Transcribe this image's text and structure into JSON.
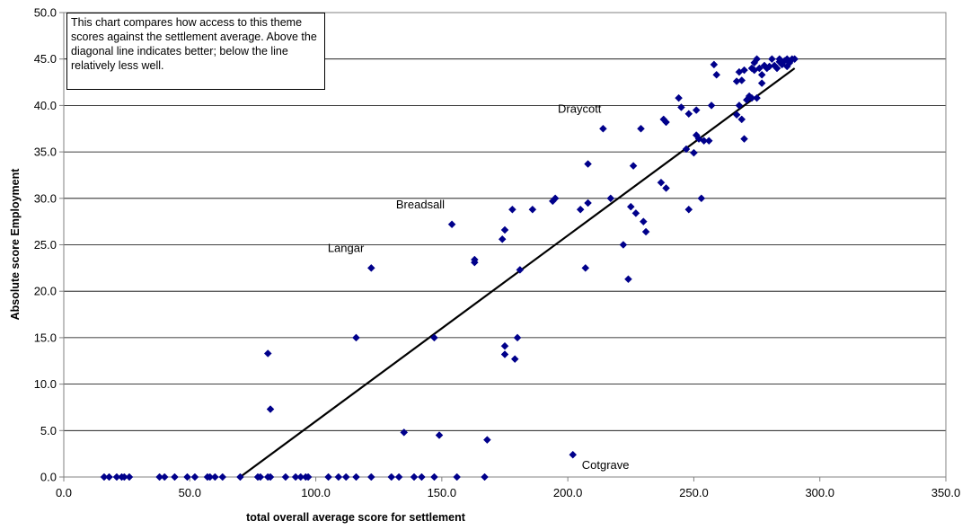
{
  "chart_data": {
    "type": "scatter",
    "xlabel": "total overall average score for settlement",
    "ylabel": "Absolute score Employment",
    "xlim": [
      0,
      350
    ],
    "ylim": [
      0,
      50
    ],
    "x_ticks": [
      "0.0",
      "50.0",
      "100.0",
      "150.0",
      "200.0",
      "250.0",
      "300.0",
      "350.0"
    ],
    "y_ticks": [
      "0.0",
      "5.0",
      "10.0",
      "15.0",
      "20.0",
      "25.0",
      "30.0",
      "35.0",
      "40.0",
      "45.0",
      "50.0"
    ],
    "grid": "horizontal",
    "legend": "none",
    "marker_color": "#00008B",
    "note": "This chart compares how access to this theme scores against the settlement average. Above the diagonal line indicates better; below the line relatively less well.",
    "trend_line": {
      "x": [
        70,
        290
      ],
      "y": [
        0,
        44
      ]
    },
    "annotations": [
      {
        "text": "Draycott",
        "x": 214,
        "y": 37.5
      },
      {
        "text": "Breadsall",
        "x": 154,
        "y": 27.2
      },
      {
        "text": "Langar",
        "x": 122,
        "y": 22.5
      },
      {
        "text": "Cotgrave",
        "x": 202,
        "y": 2.4
      }
    ],
    "points": [
      [
        16,
        0
      ],
      [
        18,
        0
      ],
      [
        21,
        0
      ],
      [
        23,
        0
      ],
      [
        24,
        0
      ],
      [
        26,
        0
      ],
      [
        38,
        0
      ],
      [
        40,
        0
      ],
      [
        44,
        0
      ],
      [
        49,
        0
      ],
      [
        52,
        0
      ],
      [
        57,
        0
      ],
      [
        58,
        0
      ],
      [
        60,
        0
      ],
      [
        63,
        0
      ],
      [
        70,
        0
      ],
      [
        77,
        0
      ],
      [
        78,
        0
      ],
      [
        81,
        0
      ],
      [
        82,
        0
      ],
      [
        88,
        0
      ],
      [
        92,
        0
      ],
      [
        94,
        0
      ],
      [
        96,
        0
      ],
      [
        97,
        0
      ],
      [
        105,
        0
      ],
      [
        109,
        0
      ],
      [
        112,
        0
      ],
      [
        116,
        0
      ],
      [
        122,
        0
      ],
      [
        130,
        0
      ],
      [
        133,
        0
      ],
      [
        139,
        0
      ],
      [
        142,
        0
      ],
      [
        147,
        0
      ],
      [
        156,
        0
      ],
      [
        167,
        0
      ],
      [
        81,
        13.3
      ],
      [
        82,
        7.3
      ],
      [
        116,
        15
      ],
      [
        122,
        22.5
      ],
      [
        135,
        4.8
      ],
      [
        147,
        15
      ],
      [
        149,
        4.5
      ],
      [
        154,
        27.2
      ],
      [
        163,
        23.1
      ],
      [
        163,
        23.4
      ],
      [
        168,
        4
      ],
      [
        174,
        25.6
      ],
      [
        175,
        26.6
      ],
      [
        175,
        13.2
      ],
      [
        175,
        14.1
      ],
      [
        178,
        28.8
      ],
      [
        179,
        12.7
      ],
      [
        180,
        15
      ],
      [
        181,
        22.3
      ],
      [
        186,
        28.8
      ],
      [
        194,
        29.7
      ],
      [
        195,
        30
      ],
      [
        202,
        2.4
      ],
      [
        205,
        28.8
      ],
      [
        207,
        22.5
      ],
      [
        208,
        29.5
      ],
      [
        208,
        33.7
      ],
      [
        214,
        37.5
      ],
      [
        217,
        30
      ],
      [
        222,
        25
      ],
      [
        224,
        21.3
      ],
      [
        225,
        29.1
      ],
      [
        226,
        33.5
      ],
      [
        227,
        28.4
      ],
      [
        229,
        37.5
      ],
      [
        230,
        27.5
      ],
      [
        231,
        26.4
      ],
      [
        237,
        31.7
      ],
      [
        238,
        38.5
      ],
      [
        239,
        31.1
      ],
      [
        239,
        38.2
      ],
      [
        244,
        40.8
      ],
      [
        245,
        39.8
      ],
      [
        247,
        35.3
      ],
      [
        248,
        39.1
      ],
      [
        248,
        28.8
      ],
      [
        250,
        34.9
      ],
      [
        251,
        39.5
      ],
      [
        251,
        36.8
      ],
      [
        252,
        36.4
      ],
      [
        253,
        30
      ],
      [
        254,
        36.2
      ],
      [
        256,
        36.2
      ],
      [
        257,
        40
      ],
      [
        258,
        44.4
      ],
      [
        259,
        43.3
      ],
      [
        267,
        42.6
      ],
      [
        267,
        39
      ],
      [
        268,
        43.6
      ],
      [
        268,
        40
      ],
      [
        269,
        38.5
      ],
      [
        269,
        42.7
      ],
      [
        270,
        43.8
      ],
      [
        270,
        36.4
      ],
      [
        271,
        40.6
      ],
      [
        272,
        41
      ],
      [
        273,
        40.8
      ],
      [
        273,
        44
      ],
      [
        274,
        44.6
      ],
      [
        274,
        43.8
      ],
      [
        275,
        45
      ],
      [
        275,
        40.8
      ],
      [
        276,
        44
      ],
      [
        277,
        43.3
      ],
      [
        277,
        42.4
      ],
      [
        278,
        44.3
      ],
      [
        279,
        44
      ],
      [
        280,
        44.2
      ],
      [
        281,
        45
      ],
      [
        282,
        44.3
      ],
      [
        283,
        44
      ],
      [
        284,
        44.7
      ],
      [
        284,
        45
      ],
      [
        285,
        44.4
      ],
      [
        286,
        44.8
      ],
      [
        287,
        44.2
      ],
      [
        287,
        45
      ],
      [
        288,
        44.6
      ],
      [
        289,
        45
      ],
      [
        290,
        45
      ]
    ]
  }
}
